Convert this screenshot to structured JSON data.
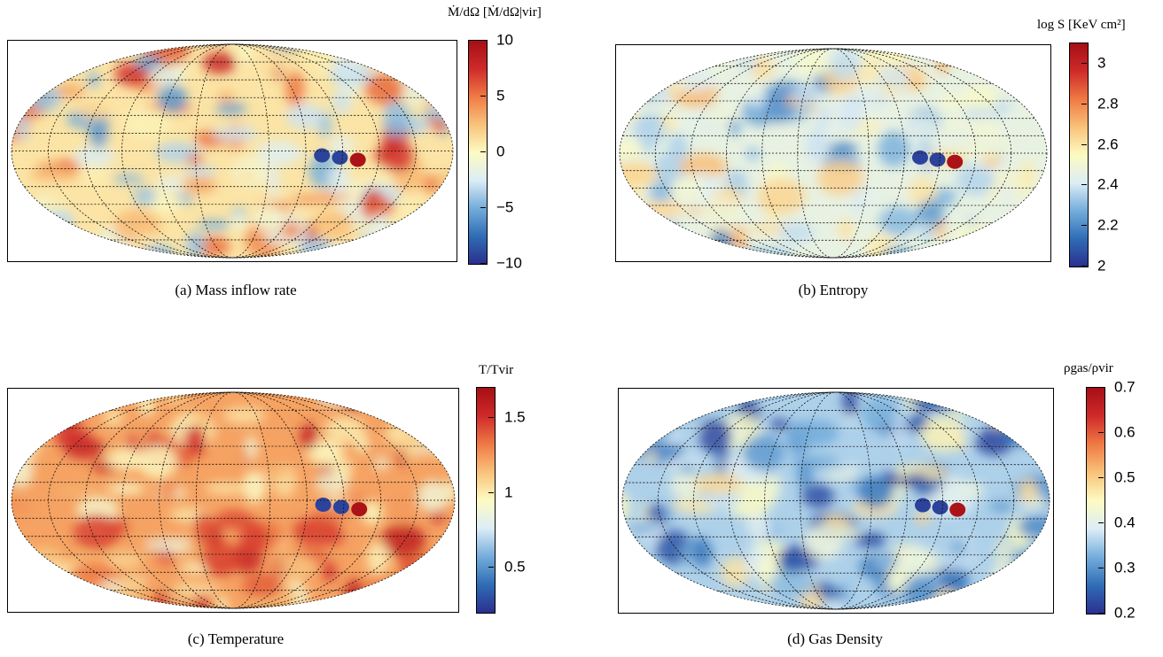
{
  "panels": [
    {
      "id": "a",
      "caption": "(a) Mass inflow rate",
      "colorbar_title": "Ṁ/dΩ [Ṁ/dΩ|vir]",
      "colormap": "diverging",
      "ticks": [
        "10",
        "5",
        "0",
        "−5",
        "−10"
      ],
      "tick_values": [
        10,
        5,
        0,
        -5,
        -10
      ],
      "range": [
        -10,
        10
      ]
    },
    {
      "id": "b",
      "caption": "(b) Entropy",
      "colorbar_title": "log S [KeV cm²]",
      "colormap": "diverging",
      "ticks": [
        "3",
        "2.8",
        "2.6",
        "2.4",
        "2.2",
        "2"
      ],
      "tick_values": [
        3,
        2.8,
        2.6,
        2.4,
        2.2,
        2
      ],
      "range": [
        2,
        3.1
      ]
    },
    {
      "id": "c",
      "caption": "(c) Temperature",
      "colorbar_title": "T/Tvir",
      "colormap": "diverging",
      "ticks": [
        "1.5",
        "1",
        "0.5"
      ],
      "tick_values": [
        1.5,
        1,
        0.5
      ],
      "range": [
        0.2,
        1.7
      ]
    },
    {
      "id": "d",
      "caption": "(d) Gas Density",
      "colorbar_title": "ρgas/ρvir",
      "colormap": "diverging",
      "ticks": [
        "0.7",
        "0.6",
        "0.5",
        "0.4",
        "0.3",
        "0.2"
      ],
      "tick_values": [
        0.7,
        0.6,
        0.5,
        0.4,
        0.3,
        0.2
      ],
      "range": [
        0.2,
        0.7
      ]
    }
  ],
  "colors": {
    "cmap_stops": [
      "#2b2f8f",
      "#2f6db5",
      "#74addb",
      "#dcedf6",
      "#fdfbc2",
      "#f9c27a",
      "#ef7a44",
      "#cf2a2a",
      "#a50f15"
    ]
  }
}
